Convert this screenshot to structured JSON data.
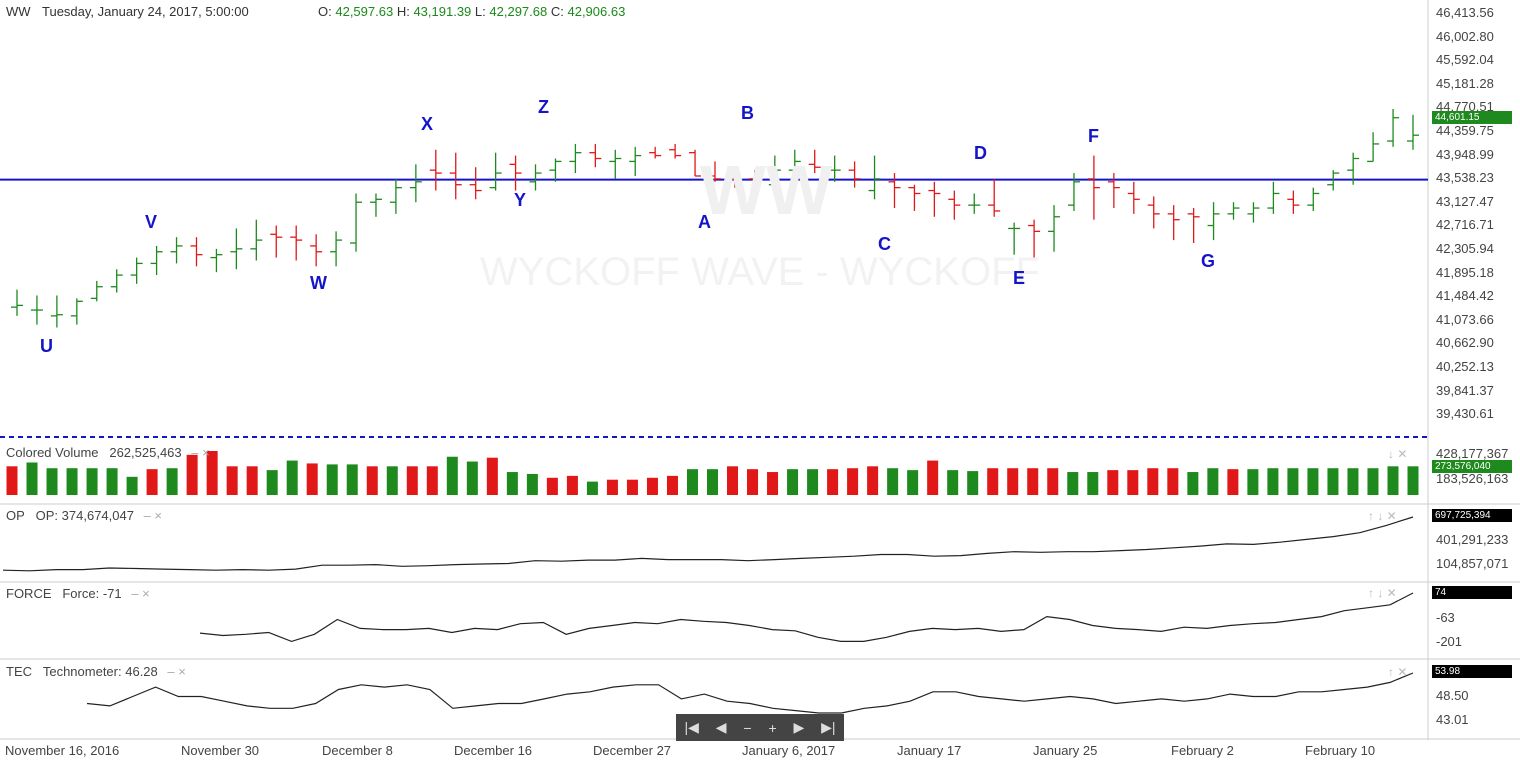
{
  "header": {
    "symbol": "WW",
    "datetime": "Tuesday, January 24, 2017, 5:00:00",
    "o_label": "O:",
    "o": "42,597.63",
    "h_label": "H:",
    "h": "43,191.39",
    "l_label": "L:",
    "l": "42,297.68",
    "c_label": "C:",
    "c": "42,906.63"
  },
  "watermark": {
    "symbol": "WW",
    "name": "WYCKOFF WAVE - WYCKOFF"
  },
  "colors": {
    "up": "#1e8a1e",
    "down": "#e01818",
    "line": "#1414c8",
    "label": "#1414c8"
  },
  "price_axis": [
    "46,413.56",
    "46,002.80",
    "45,592.04",
    "45,181.28",
    "44,770.51",
    "44,359.75",
    "43,948.99",
    "43,538.23",
    "43,127.47",
    "42,716.71",
    "42,305.94",
    "41,895.18",
    "41,484.42",
    "41,073.66",
    "40,662.90",
    "40,252.13",
    "39,841.37",
    "39,430.61"
  ],
  "last_price_badge": "44,601.15",
  "horizontal_line": 43538.23,
  "wave_labels": [
    "U",
    "V",
    "W",
    "X",
    "Y",
    "Z",
    "A",
    "B",
    "C",
    "D",
    "E",
    "F",
    "G"
  ],
  "panes": {
    "volume": {
      "name": "Colored Volume",
      "value": "262,525,463",
      "axis": [
        "428,177,367",
        "183,526,163"
      ],
      "badge": "273,576,040"
    },
    "op": {
      "name": "OP",
      "label": "OP:",
      "value": "374,674,047",
      "axis": [
        "401,291,233",
        "104,857,071"
      ],
      "badge": "697,725,394"
    },
    "force": {
      "name": "FORCE",
      "label": "Force:",
      "value": "-71",
      "axis": [
        "-63",
        "-201"
      ],
      "badge": "74"
    },
    "tec": {
      "name": "TEC",
      "label": "Technometer:",
      "value": "46.28",
      "axis": [
        "48.50",
        "43.01"
      ],
      "badge": "53.98"
    }
  },
  "date_axis": [
    "November 16, 2016",
    "November 30",
    "December 8",
    "December 16",
    "December 27",
    "January 6, 2017",
    "January 17",
    "January 25",
    "February 2",
    "February 10"
  ],
  "nav": {
    "first": "|◀",
    "prev": "◀",
    "zoom_out": "−",
    "zoom_in": "+",
    "next": "▶",
    "last": "▶|"
  },
  "chart_data": {
    "type": "bar",
    "ylim": [
      39430.61,
      46413.56
    ],
    "ohlc": [
      {
        "o": 41350,
        "h": 41650,
        "l": 41200,
        "c": 41380
      },
      {
        "o": 41300,
        "h": 41550,
        "l": 41050,
        "c": 41300
      },
      {
        "o": 41200,
        "h": 41550,
        "l": 41000,
        "c": 41220
      },
      {
        "o": 41200,
        "h": 41500,
        "l": 41050,
        "c": 41450
      },
      {
        "o": 41500,
        "h": 41800,
        "l": 41450,
        "c": 41700
      },
      {
        "o": 41700,
        "h": 42000,
        "l": 41600,
        "c": 41900
      },
      {
        "o": 41900,
        "h": 42200,
        "l": 41750,
        "c": 42100
      },
      {
        "o": 42100,
        "h": 42400,
        "l": 41900,
        "c": 42300
      },
      {
        "o": 42300,
        "h": 42550,
        "l": 42100,
        "c": 42400
      },
      {
        "o": 42400,
        "h": 42550,
        "l": 42050,
        "c": 42250
      },
      {
        "o": 42200,
        "h": 42350,
        "l": 41950,
        "c": 42250
      },
      {
        "o": 42300,
        "h": 42700,
        "l": 42000,
        "c": 42350
      },
      {
        "o": 42350,
        "h": 42850,
        "l": 42150,
        "c": 42500
      },
      {
        "o": 42600,
        "h": 42750,
        "l": 42200,
        "c": 42550
      },
      {
        "o": 42550,
        "h": 42750,
        "l": 42150,
        "c": 42500
      },
      {
        "o": 42400,
        "h": 42600,
        "l": 42050,
        "c": 42300
      },
      {
        "o": 42300,
        "h": 42650,
        "l": 42050,
        "c": 42500
      },
      {
        "o": 42450,
        "h": 43300,
        "l": 42300,
        "c": 43150
      },
      {
        "o": 43150,
        "h": 43300,
        "l": 42900,
        "c": 43200
      },
      {
        "o": 43150,
        "h": 43550,
        "l": 42950,
        "c": 43400
      },
      {
        "o": 43400,
        "h": 43800,
        "l": 43150,
        "c": 43500
      },
      {
        "o": 43700,
        "h": 44050,
        "l": 43350,
        "c": 43650
      },
      {
        "o": 43650,
        "h": 44000,
        "l": 43200,
        "c": 43450
      },
      {
        "o": 43450,
        "h": 43750,
        "l": 43200,
        "c": 43350
      },
      {
        "o": 43400,
        "h": 44000,
        "l": 43350,
        "c": 43650
      },
      {
        "o": 43800,
        "h": 43950,
        "l": 43350,
        "c": 43650
      },
      {
        "o": 43500,
        "h": 43800,
        "l": 43350,
        "c": 43650
      },
      {
        "o": 43700,
        "h": 43900,
        "l": 43500,
        "c": 43850
      },
      {
        "o": 43850,
        "h": 44150,
        "l": 43650,
        "c": 44000
      },
      {
        "o": 44000,
        "h": 44150,
        "l": 43750,
        "c": 43900
      },
      {
        "o": 43850,
        "h": 44050,
        "l": 43550,
        "c": 43900
      },
      {
        "o": 43850,
        "h": 44100,
        "l": 43600,
        "c": 43950
      },
      {
        "o": 44000,
        "h": 44100,
        "l": 43900,
        "c": 43950
      },
      {
        "o": 44050,
        "h": 44150,
        "l": 43900,
        "c": 43950
      },
      {
        "o": 44000,
        "h": 44050,
        "l": 43600,
        "c": 43600
      },
      {
        "o": 43600,
        "h": 43850,
        "l": 43500,
        "c": 43550
      },
      {
        "o": 43550,
        "h": 43700,
        "l": 43400,
        "c": 43500
      },
      {
        "o": 43550,
        "h": 43700,
        "l": 43300,
        "c": 43450
      },
      {
        "o": 43450,
        "h": 43950,
        "l": 43300,
        "c": 43700
      },
      {
        "o": 43700,
        "h": 44050,
        "l": 43650,
        "c": 43850
      },
      {
        "o": 43800,
        "h": 44050,
        "l": 43650,
        "c": 43750
      },
      {
        "o": 43700,
        "h": 43950,
        "l": 43500,
        "c": 43700
      },
      {
        "o": 43700,
        "h": 43850,
        "l": 43400,
        "c": 43550
      },
      {
        "o": 43350,
        "h": 43950,
        "l": 43200,
        "c": 43550
      },
      {
        "o": 43500,
        "h": 43650,
        "l": 43050,
        "c": 43400
      },
      {
        "o": 43400,
        "h": 43450,
        "l": 43000,
        "c": 43300
      },
      {
        "o": 43350,
        "h": 43500,
        "l": 42900,
        "c": 43300
      },
      {
        "o": 43200,
        "h": 43350,
        "l": 42850,
        "c": 43100
      },
      {
        "o": 43100,
        "h": 43300,
        "l": 42950,
        "c": 43100
      },
      {
        "o": 43100,
        "h": 43550,
        "l": 42900,
        "c": 43000
      },
      {
        "o": 42700,
        "h": 42800,
        "l": 42250,
        "c": 42700
      },
      {
        "o": 42750,
        "h": 42850,
        "l": 42150,
        "c": 42650
      },
      {
        "o": 42650,
        "h": 43100,
        "l": 42300,
        "c": 42900
      },
      {
        "o": 43100,
        "h": 43650,
        "l": 43000,
        "c": 43500
      },
      {
        "o": 43550,
        "h": 43950,
        "l": 42850,
        "c": 43400
      },
      {
        "o": 43500,
        "h": 43650,
        "l": 43050,
        "c": 43400
      },
      {
        "o": 43300,
        "h": 43500,
        "l": 42950,
        "c": 43200
      },
      {
        "o": 43100,
        "h": 43250,
        "l": 42700,
        "c": 42950
      },
      {
        "o": 42950,
        "h": 43100,
        "l": 42500,
        "c": 42850
      },
      {
        "o": 42950,
        "h": 43050,
        "l": 42450,
        "c": 42900
      },
      {
        "o": 42750,
        "h": 43150,
        "l": 42500,
        "c": 42950
      },
      {
        "o": 42950,
        "h": 43150,
        "l": 42850,
        "c": 43050
      },
      {
        "o": 42950,
        "h": 43150,
        "l": 42800,
        "c": 43050
      },
      {
        "o": 43050,
        "h": 43500,
        "l": 42950,
        "c": 43300
      },
      {
        "o": 43200,
        "h": 43350,
        "l": 42950,
        "c": 43100
      },
      {
        "o": 43100,
        "h": 43400,
        "l": 43000,
        "c": 43300
      },
      {
        "o": 43450,
        "h": 43700,
        "l": 43350,
        "c": 43650
      },
      {
        "o": 43700,
        "h": 44000,
        "l": 43450,
        "c": 43900
      },
      {
        "o": 43850,
        "h": 44350,
        "l": 43850,
        "c": 44150
      },
      {
        "o": 44200,
        "h": 44750,
        "l": 44100,
        "c": 44600
      },
      {
        "o": 44200,
        "h": 44650,
        "l": 44050,
        "c": 44300
      }
    ],
    "volume": [
      150,
      170,
      140,
      140,
      140,
      140,
      95,
      135,
      140,
      210,
      230,
      150,
      150,
      130,
      180,
      165,
      160,
      160,
      150,
      150,
      150,
      150,
      200,
      175,
      195,
      120,
      110,
      90,
      100,
      70,
      80,
      80,
      90,
      100,
      135,
      135,
      150,
      135,
      120,
      135,
      135,
      135,
      140,
      150,
      140,
      130,
      180,
      130,
      125,
      140,
      140,
      140,
      140,
      120,
      120,
      130,
      130,
      140,
      140,
      120,
      140,
      135,
      135,
      140,
      140,
      140,
      140,
      140,
      140,
      150,
      150
    ],
    "volume_up": [
      false,
      true,
      true,
      true,
      true,
      true,
      true,
      false,
      true,
      false,
      false,
      false,
      false,
      true,
      true,
      false,
      true,
      true,
      false,
      true,
      false,
      false,
      true,
      true,
      false,
      true,
      true,
      false,
      false,
      true,
      false,
      false,
      false,
      false,
      true,
      true,
      false,
      false,
      false,
      true,
      true,
      false,
      false,
      false,
      true,
      true,
      false,
      true,
      true,
      false,
      false,
      false,
      false,
      true,
      true,
      false,
      false,
      false,
      false,
      true,
      true,
      false,
      true,
      true,
      true,
      true,
      true,
      true,
      true,
      true,
      true
    ],
    "op": [
      0.05,
      0.04,
      0.06,
      0.06,
      0.09,
      0.08,
      0.07,
      0.06,
      0.05,
      0.06,
      0.05,
      0.07,
      0.14,
      0.14,
      0.15,
      0.12,
      0.13,
      0.15,
      0.16,
      0.17,
      0.22,
      0.21,
      0.23,
      0.23,
      0.26,
      0.24,
      0.24,
      0.24,
      0.22,
      0.24,
      0.26,
      0.28,
      0.3,
      0.33,
      0.33,
      0.3,
      0.31,
      0.35,
      0.38,
      0.37,
      0.38,
      0.38,
      0.4,
      0.42,
      0.45,
      0.48,
      0.52,
      0.51,
      0.55,
      0.6,
      0.65,
      0.72,
      0.85,
      1.0
    ],
    "force": [
      0.32,
      0.28,
      0.3,
      0.33,
      0.18,
      0.3,
      0.55,
      0.4,
      0.38,
      0.38,
      0.4,
      0.33,
      0.4,
      0.38,
      0.48,
      0.5,
      0.3,
      0.4,
      0.45,
      0.5,
      0.48,
      0.55,
      0.52,
      0.5,
      0.45,
      0.38,
      0.36,
      0.25,
      0.18,
      0.18,
      0.25,
      0.35,
      0.4,
      0.38,
      0.4,
      0.35,
      0.38,
      0.6,
      0.55,
      0.45,
      0.4,
      0.38,
      0.35,
      0.42,
      0.4,
      0.45,
      0.48,
      0.5,
      0.55,
      0.6,
      0.7,
      0.75,
      0.8,
      1.0
    ],
    "tec": [
      0.35,
      0.3,
      0.5,
      0.7,
      0.5,
      0.5,
      0.4,
      0.3,
      0.25,
      0.25,
      0.35,
      0.65,
      0.75,
      0.7,
      0.75,
      0.65,
      0.25,
      0.3,
      0.35,
      0.35,
      0.45,
      0.55,
      0.6,
      0.7,
      0.75,
      0.75,
      0.45,
      0.55,
      0.4,
      0.35,
      0.25,
      0.2,
      0.15,
      0.15,
      0.25,
      0.3,
      0.4,
      0.6,
      0.6,
      0.5,
      0.45,
      0.4,
      0.45,
      0.5,
      0.45,
      0.35,
      0.4,
      0.45,
      0.4,
      0.45,
      0.55,
      0.5,
      0.5,
      0.6,
      0.6,
      0.65,
      0.7,
      0.8,
      1.0
    ]
  }
}
